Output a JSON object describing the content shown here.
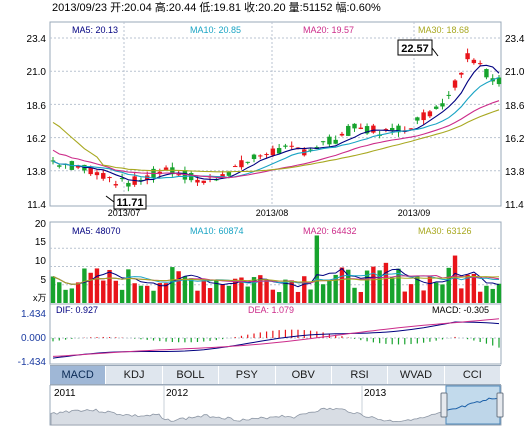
{
  "header": {
    "text": "2013/09/23 开:20.04 高:20.44 低:19.81 收:20.20 量:51152 幅:0.60%"
  },
  "price_panel": {
    "legend": {
      "ma5": "MA5: 20.13",
      "ma10": "MA10: 20.85",
      "ma20": "MA20: 19.57",
      "ma30": "MA30: 18.68"
    },
    "y_ticks": [
      "23.4",
      "21.0",
      "18.6",
      "16.2",
      "13.8",
      "11.4"
    ],
    "x_labels": [
      "2013/07",
      "2013/08",
      "2013/09"
    ],
    "high_label": "22.57",
    "low_label": "11.71"
  },
  "volume_panel": {
    "legend": {
      "ma5": "MA5: 48070",
      "ma10": "MA10: 60874",
      "ma20": "MA20: 64432",
      "ma30": "MA30: 63126"
    },
    "y_ticks": [
      "20",
      "15",
      "10",
      "5"
    ],
    "unit": "x万"
  },
  "macd_panel": {
    "dif": "DIF: 0.927",
    "dea": "DEA: 1.079",
    "macd": "MACD: -0.305",
    "y_ticks": [
      "1.434",
      "0.000",
      "-1.434"
    ]
  },
  "tabs": [
    "MACD",
    "KDJ",
    "BOLL",
    "PSY",
    "OBV",
    "RSI",
    "WVAD",
    "CCI"
  ],
  "navigator": {
    "years": [
      "2011",
      "2012",
      "2013"
    ]
  },
  "colors": {
    "up": "#e8141a",
    "down": "#17a32d",
    "ma5": "#000080",
    "ma10": "#1aa4c4",
    "ma20": "#cc2c8a",
    "ma30": "#a8a820",
    "grid": "#b9c3d0"
  },
  "chart_data": {
    "type": "candlestick",
    "x_labels": [
      "2013/07",
      "2013/08",
      "2013/09"
    ],
    "price_range": [
      11.4,
      23.4
    ],
    "annotations": {
      "high": 22.57,
      "low": 11.71
    },
    "last": {
      "date": "2013/09/23",
      "open": 20.04,
      "high": 20.44,
      "low": 19.81,
      "close": 20.2,
      "volume": 51152,
      "change_pct": 0.6
    },
    "moving_averages": {
      "MA5": 20.13,
      "MA10": 20.85,
      "MA20": 19.57,
      "MA30": 18.68
    },
    "volume_ma": {
      "MA5": 48070,
      "MA10": 60874,
      "MA20": 64432,
      "MA30": 63126
    },
    "macd": {
      "DIF": 0.927,
      "DEA": 1.079,
      "MACD": -0.305
    }
  }
}
